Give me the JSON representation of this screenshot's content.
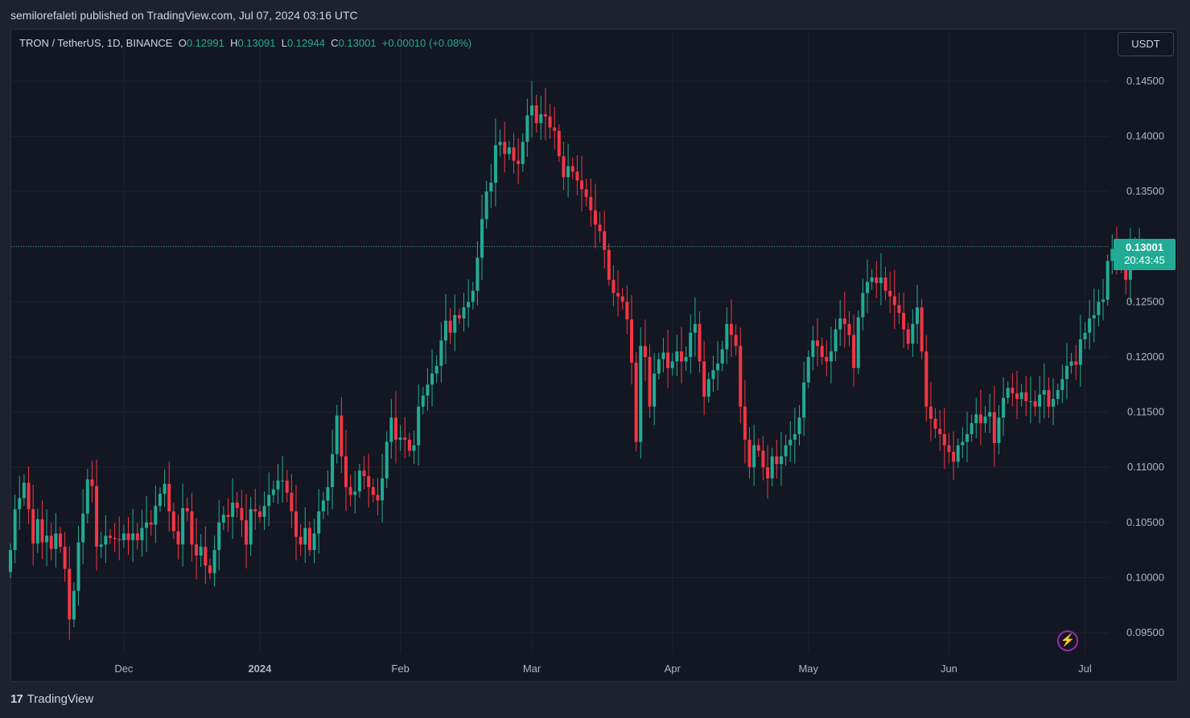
{
  "header": {
    "published": "semilorefaleti published on TradingView.com, Jul 07, 2024 03:16 UTC"
  },
  "legend": {
    "symbol": "TRON / TetherUS, 1D, BINANCE",
    "o_label": "O",
    "o": "0.12991",
    "h_label": "H",
    "h": "0.13091",
    "l_label": "L",
    "l": "0.12944",
    "c_label": "C",
    "c": "0.13001",
    "change": "+0.00010 (+0.08%)"
  },
  "currency_button": "USDT",
  "price_tag": {
    "price": "0.13001",
    "countdown": "20:43:45"
  },
  "footer": {
    "logo_mark": "17",
    "brand": "TradingView"
  },
  "colors": {
    "up": "#22ab94",
    "down": "#f23645",
    "background": "#131722",
    "grid": "#1f232e"
  },
  "icons": {
    "alert": "lightning-icon",
    "logo": "tradingview-logo-icon"
  },
  "chart_data": {
    "type": "candlestick",
    "ylim": [
      0.0925,
      0.1475
    ],
    "y_ticks": [
      "0.14500",
      "0.14000",
      "0.13500",
      "0.13000",
      "0.12500",
      "0.12000",
      "0.11500",
      "0.11000",
      "0.10500",
      "0.10000",
      "0.09500"
    ],
    "x_ticks": [
      {
        "label": "Dec",
        "index": 25
      },
      {
        "label": "2024",
        "index": 55
      },
      {
        "label": "Feb",
        "index": 86
      },
      {
        "label": "Mar",
        "index": 115
      },
      {
        "label": "Apr",
        "index": 146
      },
      {
        "label": "May",
        "index": 176
      },
      {
        "label": "Jun",
        "index": 207
      },
      {
        "label": "Jul",
        "index": 237
      }
    ],
    "last_price": 0.13001,
    "closes": [
      0.1025,
      0.1062,
      0.1072,
      0.1086,
      0.1062,
      0.1031,
      0.1053,
      0.1032,
      0.1038,
      0.1026,
      0.104,
      0.1028,
      0.1008,
      0.0962,
      0.0988,
      0.1032,
      0.1058,
      0.1089,
      0.1083,
      0.1028,
      0.103,
      0.1038,
      0.1036,
      0.1035,
      0.1034,
      0.104,
      0.1034,
      0.104,
      0.1034,
      0.1045,
      0.105,
      0.1048,
      0.1065,
      0.1076,
      0.1085,
      0.106,
      0.1042,
      0.103,
      0.1063,
      0.106,
      0.103,
      0.102,
      0.1028,
      0.1011,
      0.1004,
      0.1025,
      0.105,
      0.1057,
      0.1055,
      0.1068,
      0.1063,
      0.1052,
      0.103,
      0.1062,
      0.106,
      0.1055,
      0.1065,
      0.1075,
      0.108,
      0.1088,
      0.1088,
      0.1077,
      0.106,
      0.1037,
      0.103,
      0.1045,
      0.1025,
      0.104,
      0.106,
      0.107,
      0.1082,
      0.1112,
      0.1147,
      0.111,
      0.1082,
      0.1075,
      0.1078,
      0.1097,
      0.1092,
      0.1082,
      0.1075,
      0.107,
      0.109,
      0.1123,
      0.1145,
      0.1125,
      0.1127,
      0.1125,
      0.1115,
      0.112,
      0.1155,
      0.1165,
      0.1175,
      0.1185,
      0.1192,
      0.1215,
      0.1233,
      0.1222,
      0.1238,
      0.1235,
      0.1245,
      0.125,
      0.126,
      0.129,
      0.1325,
      0.135,
      0.1358,
      0.1392,
      0.1395,
      0.1384,
      0.139,
      0.1378,
      0.1375,
      0.1395,
      0.1419,
      0.1428,
      0.1412,
      0.142,
      0.1418,
      0.1408,
      0.1405,
      0.1382,
      0.1363,
      0.1373,
      0.1368,
      0.136,
      0.1352,
      0.1345,
      0.1333,
      0.132,
      0.1314,
      0.1297,
      0.127,
      0.1258,
      0.1255,
      0.125,
      0.1234,
      0.1195,
      0.1123,
      0.121,
      0.12,
      0.1155,
      0.1185,
      0.1198,
      0.1204,
      0.119,
      0.1196,
      0.1205,
      0.1196,
      0.12,
      0.1222,
      0.123,
      0.1196,
      0.1164,
      0.118,
      0.1188,
      0.1194,
      0.1207,
      0.123,
      0.122,
      0.121,
      0.1155,
      0.1125,
      0.11,
      0.112,
      0.1115,
      0.11,
      0.109,
      0.111,
      0.1103,
      0.111,
      0.112,
      0.1125,
      0.113,
      0.1145,
      0.1177,
      0.12,
      0.1215,
      0.121,
      0.12,
      0.1196,
      0.1205,
      0.1225,
      0.1235,
      0.123,
      0.122,
      0.119,
      0.1236,
      0.1258,
      0.1268,
      0.1272,
      0.1267,
      0.1272,
      0.126,
      0.1255,
      0.1247,
      0.124,
      0.1225,
      0.1212,
      0.123,
      0.1245,
      0.1205,
      0.1155,
      0.1144,
      0.1135,
      0.113,
      0.112,
      0.1114,
      0.1105,
      0.112,
      0.1123,
      0.113,
      0.114,
      0.1148,
      0.114,
      0.1146,
      0.115,
      0.1122,
      0.1145,
      0.1163,
      0.1172,
      0.1167,
      0.1162,
      0.1168,
      0.116,
      0.116,
      0.1155,
      0.1166,
      0.117,
      0.1155,
      0.1162,
      0.117,
      0.118,
      0.1192,
      0.1196,
      0.1193,
      0.1216,
      0.1222,
      0.1235,
      0.1238,
      0.125,
      0.1252,
      0.1287,
      0.1298,
      0.1293,
      0.1283,
      0.127,
      0.1295,
      0.1299,
      0.13
    ]
  }
}
